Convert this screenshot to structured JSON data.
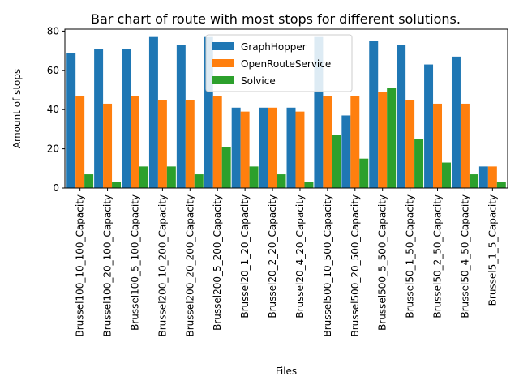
{
  "chart_data": {
    "type": "bar",
    "title": "Bar chart of route with most stops for different solutions.",
    "xlabel": "Files",
    "ylabel": "Amount of stops",
    "ylim": [
      0,
      81
    ],
    "yticks": [
      0,
      20,
      40,
      60,
      80
    ],
    "grid": false,
    "legend_position": "top-center",
    "categories": [
      "Brussel100_10_100_Capacity",
      "Brussel100_20_100_Capacity",
      "Brussel100_5_100_Capacity",
      "Brussel200_10_200_Capacity",
      "Brussel200_20_200_Capacity",
      "Brussel200_5_200_Capacity",
      "Brussel20_1_20_Capacity",
      "Brussel20_2_20_Capacity",
      "Brussel20_4_20_Capacity",
      "Brussel500_10_500_Capacity",
      "Brussel500_20_500_Capacity",
      "Brussel500_5_500_Capacity",
      "Brussel50_1_50_Capacity",
      "Brussel50_2_50_Capacity",
      "Brussel50_4_50_Capacity",
      "Brussel5_1_5_Capacity"
    ],
    "series": [
      {
        "name": "GraphHopper",
        "color": "#1f77b4",
        "values": [
          69,
          71,
          71,
          77,
          73,
          77,
          41,
          41,
          41,
          77,
          37,
          75,
          73,
          63,
          67,
          11
        ]
      },
      {
        "name": "OpenRouteService",
        "color": "#ff7f0e",
        "values": [
          47,
          43,
          47,
          45,
          45,
          47,
          39,
          41,
          39,
          47,
          47,
          49,
          45,
          43,
          43,
          11
        ]
      },
      {
        "name": "Solvice",
        "color": "#2ca02c",
        "values": [
          7,
          3,
          11,
          11,
          7,
          21,
          11,
          7,
          3,
          27,
          15,
          51,
          25,
          13,
          7,
          3
        ]
      }
    ]
  }
}
